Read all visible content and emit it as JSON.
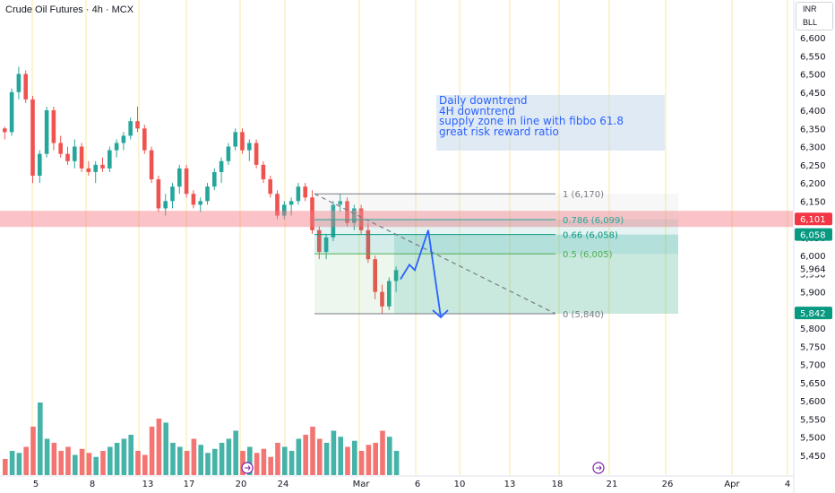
{
  "header": {
    "title": "Crude Oil Futures · 4h · MCX",
    "currency": "INR",
    "unit": "BLL"
  },
  "annotation": {
    "lines": [
      "Daily downtrend",
      "4H downtrend",
      "supply zone in line with fibbo 61.8",
      "great risk reward ratio"
    ]
  },
  "fibonacci": [
    {
      "label": "1 (6,170)",
      "level": 1,
      "price": 6170,
      "color": "#787b86"
    },
    {
      "label": "0.786 (6,099)",
      "level": 0.786,
      "price": 6099,
      "color": "#26a69a"
    },
    {
      "label": "0.66 (6,058)",
      "level": 0.66,
      "price": 6058,
      "color": "#089981"
    },
    {
      "label": "0.5 (6,005)",
      "level": 0.5,
      "price": 6005,
      "color": "#4caf50"
    },
    {
      "label": "0 (5,840)",
      "level": 0,
      "price": 5840,
      "color": "#787b86"
    }
  ],
  "price_axis": {
    "ticks": [
      "6,600",
      "6,550",
      "6,500",
      "6,450",
      "6,400",
      "6,350",
      "6,300",
      "6,250",
      "6,200",
      "6,150",
      "6,100",
      "6,050",
      "6,000",
      "5,950",
      "5,900",
      "5,850",
      "5,800",
      "5,750",
      "5,700",
      "5,650",
      "5,600",
      "5,550",
      "5,500",
      "5,450"
    ],
    "markers": [
      {
        "text": "6,101",
        "price": 6101,
        "color": "#f23645"
      },
      {
        "text": "6,058",
        "price": 6058,
        "color": "#089981"
      },
      {
        "text": "5,964",
        "price": 5964,
        "color": "#ffffff"
      },
      {
        "text": "5,842",
        "price": 5842,
        "color": "#089981"
      }
    ]
  },
  "time_axis": {
    "labels": [
      "5",
      "8",
      "13",
      "17",
      "20",
      "24",
      "Mar",
      "6",
      "10",
      "13",
      "18",
      "21",
      "26",
      "Apr",
      "4"
    ]
  },
  "colors": {
    "up": "#26a69a",
    "down": "#ef5350",
    "supply_zone": "#f7a6ab",
    "projection": "#2962ff",
    "session_line": "#f7e9a0"
  },
  "icons": [
    "arrow-right-circle-icon",
    "arrow-right-circle-icon"
  ],
  "chart_data": {
    "type": "candlestick",
    "ylim": [
      5420,
      6630
    ],
    "ticks_y": [
      6600,
      6550,
      6500,
      6450,
      6400,
      6350,
      6300,
      6250,
      6200,
      6150,
      6100,
      6050,
      6000,
      5950,
      5900,
      5850,
      5800,
      5750,
      5700,
      5650,
      5600,
      5550,
      5500,
      5450
    ],
    "candles": [
      [
        6350,
        6355,
        6320,
        6340
      ],
      [
        6340,
        6460,
        6330,
        6450
      ],
      [
        6450,
        6520,
        6430,
        6500
      ],
      [
        6500,
        6510,
        6420,
        6430
      ],
      [
        6430,
        6440,
        6200,
        6220
      ],
      [
        6220,
        6290,
        6200,
        6280
      ],
      [
        6280,
        6410,
        6270,
        6400
      ],
      [
        6400,
        6410,
        6290,
        6310
      ],
      [
        6310,
        6330,
        6270,
        6280
      ],
      [
        6280,
        6300,
        6250,
        6260
      ],
      [
        6260,
        6320,
        6240,
        6300
      ],
      [
        6300,
        6310,
        6230,
        6240
      ],
      [
        6240,
        6260,
        6220,
        6230
      ],
      [
        6230,
        6260,
        6200,
        6250
      ],
      [
        6250,
        6270,
        6230,
        6240
      ],
      [
        6240,
        6300,
        6230,
        6290
      ],
      [
        6290,
        6320,
        6270,
        6310
      ],
      [
        6310,
        6340,
        6290,
        6330
      ],
      [
        6330,
        6380,
        6320,
        6370
      ],
      [
        6370,
        6410,
        6340,
        6350
      ],
      [
        6350,
        6360,
        6280,
        6290
      ],
      [
        6290,
        6300,
        6200,
        6210
      ],
      [
        6210,
        6220,
        6120,
        6130
      ],
      [
        6130,
        6170,
        6110,
        6150
      ],
      [
        6150,
        6200,
        6130,
        6190
      ],
      [
        6190,
        6250,
        6170,
        6240
      ],
      [
        6240,
        6250,
        6160,
        6170
      ],
      [
        6170,
        6180,
        6130,
        6140
      ],
      [
        6140,
        6160,
        6120,
        6150
      ],
      [
        6150,
        6200,
        6140,
        6190
      ],
      [
        6190,
        6240,
        6180,
        6230
      ],
      [
        6230,
        6270,
        6200,
        6260
      ],
      [
        6260,
        6310,
        6250,
        6300
      ],
      [
        6300,
        6350,
        6290,
        6340
      ],
      [
        6340,
        6350,
        6280,
        6290
      ],
      [
        6290,
        6320,
        6260,
        6310
      ],
      [
        6310,
        6320,
        6240,
        6250
      ],
      [
        6250,
        6260,
        6200,
        6210
      ],
      [
        6210,
        6220,
        6160,
        6170
      ],
      [
        6170,
        6180,
        6100,
        6110
      ],
      [
        6110,
        6150,
        6100,
        6140
      ],
      [
        6140,
        6160,
        6110,
        6150
      ],
      [
        6150,
        6200,
        6140,
        6190
      ],
      [
        6190,
        6200,
        6150,
        6160
      ],
      [
        6160,
        6180,
        6060,
        6070
      ],
      [
        6070,
        6080,
        5990,
        6010
      ],
      [
        6010,
        6060,
        5990,
        6050
      ],
      [
        6050,
        6150,
        6040,
        6140
      ],
      [
        6140,
        6170,
        6120,
        6150
      ],
      [
        6150,
        6160,
        6080,
        6090
      ],
      [
        6090,
        6140,
        6070,
        6130
      ],
      [
        6130,
        6140,
        6060,
        6070
      ],
      [
        6070,
        6090,
        5980,
        5990
      ],
      [
        5990,
        6000,
        5880,
        5900
      ],
      [
        5900,
        5920,
        5840,
        5860
      ],
      [
        5860,
        5940,
        5850,
        5930
      ],
      [
        5930,
        5970,
        5900,
        5960
      ]
    ],
    "volume": [
      40,
      60,
      55,
      70,
      120,
      180,
      90,
      80,
      60,
      70,
      50,
      65,
      55,
      45,
      60,
      70,
      80,
      90,
      100,
      60,
      50,
      120,
      140,
      130,
      80,
      70,
      60,
      90,
      75,
      55,
      65,
      80,
      90,
      110,
      60,
      70,
      55,
      65,
      45,
      80,
      70,
      60,
      90,
      100,
      120,
      90,
      80,
      110,
      95,
      70,
      85,
      60,
      75,
      80,
      110,
      95,
      60
    ],
    "projection": [
      [
        6005,
        5930
      ],
      [
        5990,
        5960
      ],
      [
        6058,
        6070
      ],
      [
        5830,
        5830
      ]
    ],
    "series": [
      {
        "name": "Crude Oil Futures"
      }
    ]
  }
}
